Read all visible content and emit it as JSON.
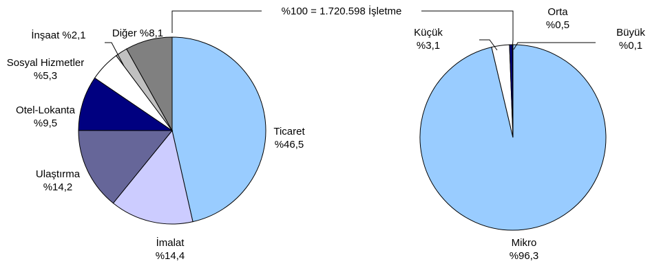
{
  "header": {
    "total_label": "%100 = 1.720.598 İşletme"
  },
  "chart_data": [
    {
      "type": "pie",
      "title": "",
      "slices": [
        {
          "name": "Ticaret",
          "value_label": "%46,5",
          "value": 46.5,
          "color": "#99ccff"
        },
        {
          "name": "İmalat",
          "value_label": "%14,4",
          "value": 14.4,
          "color": "#ccccff"
        },
        {
          "name": "Ulaştırma",
          "value_label": "%14,2",
          "value": 14.2,
          "color": "#666699"
        },
        {
          "name": "Otel-Lokanta",
          "value_label": "%9,5",
          "value": 9.5,
          "color": "#000080"
        },
        {
          "name": "Sosyal Hizmetler",
          "value_label": "%5,3",
          "value": 5.3,
          "color": "#ffffff"
        },
        {
          "name": "İnşaat",
          "value_label": "%2,1",
          "value": 2.1,
          "color": "#c0c0c0"
        },
        {
          "name": "Diğer",
          "value_label": "%8,1",
          "value": 8.1,
          "color": "#808080"
        }
      ]
    },
    {
      "type": "pie",
      "title": "",
      "slices": [
        {
          "name": "Mikro",
          "value_label": "%96,3",
          "value": 96.3,
          "color": "#99ccff"
        },
        {
          "name": "Küçük",
          "value_label": "%3,1",
          "value": 3.1,
          "color": "#ffffff"
        },
        {
          "name": "Orta",
          "value_label": "%0,5",
          "value": 0.5,
          "color": "#000080"
        },
        {
          "name": "Büyük",
          "value_label": "%0,1",
          "value": 0.1,
          "color": "#333399"
        }
      ]
    }
  ]
}
